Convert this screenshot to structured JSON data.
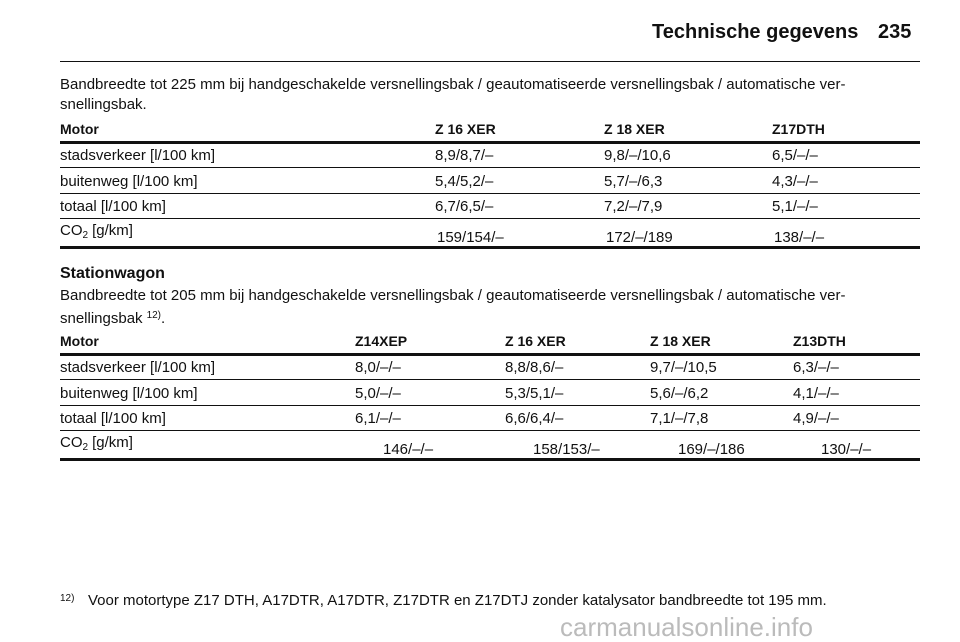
{
  "header": {
    "title": "Technische gegevens",
    "page": "235"
  },
  "sections": [
    {
      "intro": [
        "Bandbreedte tot 225 mm bij handgeschakelde versnellingsbak / geautomatiseerde versnellingsbak / automatische ver-",
        "snellingsbak."
      ],
      "table": {
        "columns": [
          "Motor",
          "Z 16 XER",
          "Z 18 XER",
          "Z17DTH"
        ],
        "rows": [
          [
            "stadsverkeer [l/100 km]",
            "8,9/8,7/–",
            "9,8/–/10,6",
            "6,5/–/–"
          ],
          [
            "buitenweg [l/100 km]",
            "5,4/5,2/–",
            "5,7/–/6,3",
            "4,3/–/–"
          ],
          [
            "totaal [l/100 km]",
            "6,7/6,5/–",
            "7,2/–/7,9",
            "5,1/–/–"
          ]
        ],
        "co2_row": {
          "label": "CO",
          "sub": "2",
          "unit": "[g/km]",
          "values": [
            "159/154/–",
            "172/–/189",
            "138/–/–"
          ]
        }
      }
    },
    {
      "heading": "Stationwagon",
      "intro": [
        "Bandbreedte tot 205 mm bij handgeschakelde versnellingsbak / geautomatiseerde versnellingsbak / automatische ver-",
        "snellingsbak"
      ],
      "note_ref": "12)",
      "intro_end": ".",
      "table": {
        "columns": [
          "Motor",
          "Z14XEP",
          "Z 16 XER",
          "Z 18 XER",
          "Z13DTH"
        ],
        "rows": [
          [
            "stadsverkeer [l/100 km]",
            "8,0/–/–",
            "8,8/8,6/–",
            "9,7/–/10,5",
            "6,3/–/–"
          ],
          [
            "buitenweg [l/100 km]",
            "5,0/–/–",
            "5,3/5,1/–",
            "5,6/–/6,2",
            "4,1/–/–"
          ],
          [
            "totaal [l/100 km]",
            "6,1/–/–",
            "6,6/6,4/–",
            "7,1/–/7,8",
            "4,9/–/–"
          ]
        ],
        "co2_row": {
          "label": "CO",
          "sub": "2",
          "unit": "[g/km]",
          "values": [
            "146/–/–",
            "158/153/–",
            "169/–/186",
            "130/–/–"
          ]
        }
      }
    }
  ],
  "footnote": {
    "mark": "12)",
    "text": "Voor motortype Z17 DTH, A17DTR, A17DTR, Z17DTR en Z17DTJ zonder katalysator bandbreedte tot 195 mm."
  },
  "watermark": "carmanualsonline.info"
}
